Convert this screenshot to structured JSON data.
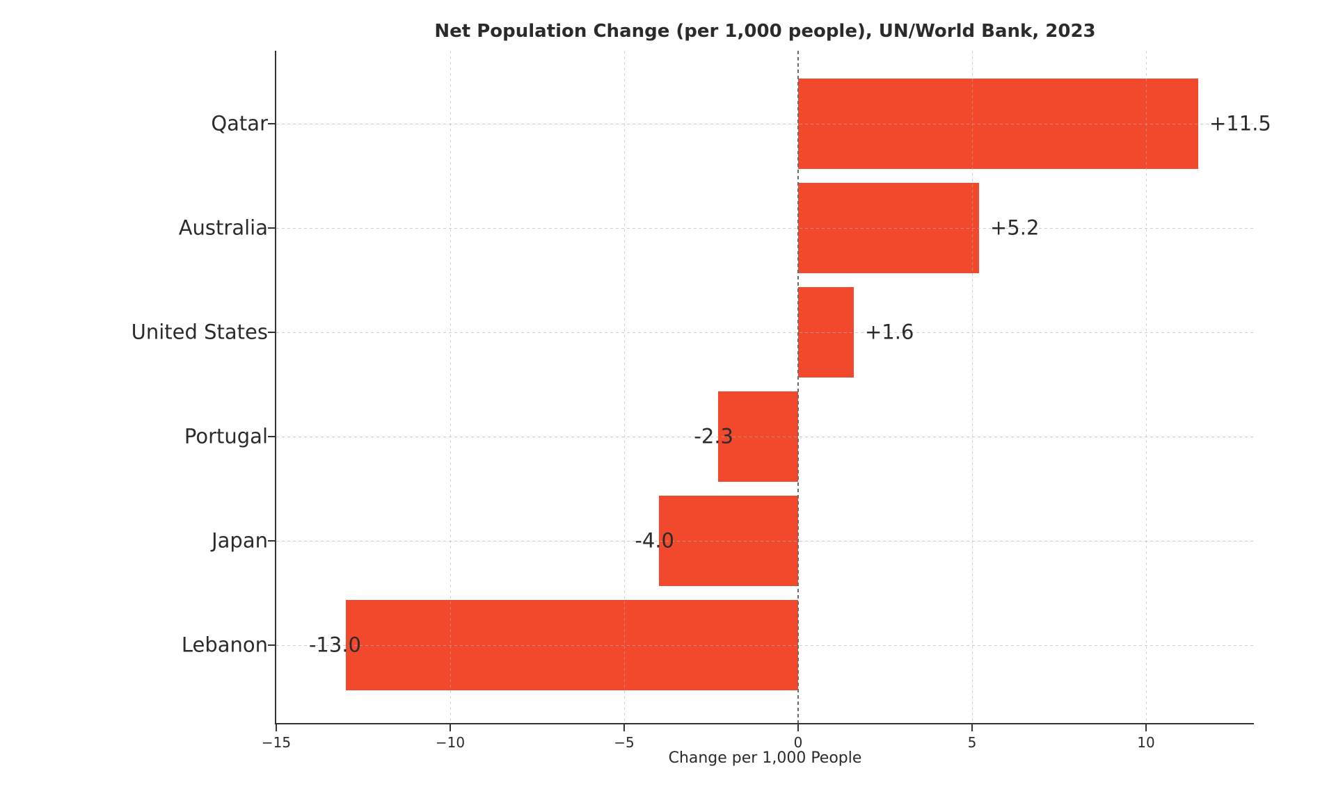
{
  "chart_data": {
    "type": "bar",
    "orientation": "horizontal",
    "title": "Net Population Change (per 1,000 people), UN/World Bank, 2023",
    "xlabel": "Change per 1,000 People",
    "ylabel": "",
    "categories": [
      "Qatar",
      "Australia",
      "United States",
      "Portugal",
      "Japan",
      "Lebanon"
    ],
    "values": [
      11.5,
      5.2,
      1.6,
      -2.3,
      -4.0,
      -13.0
    ],
    "bar_labels": [
      "+11.5",
      "+5.2",
      "+1.6",
      "-2.3",
      "-4.0",
      "-13.0"
    ],
    "xticks": [
      -15,
      -10,
      -5,
      0,
      5,
      10
    ],
    "xtick_labels": [
      "−15",
      "−10",
      "−5",
      "0",
      "5",
      "10"
    ],
    "xlim": [
      -15,
      13.1
    ],
    "grid": true,
    "legend": false,
    "zero_line": true,
    "colors": {
      "bar": "#F2492C",
      "text": "#2B2B2B",
      "grid": "#B0B0B0",
      "zero_line": "#6A6A6A",
      "spine": "#333333"
    }
  }
}
